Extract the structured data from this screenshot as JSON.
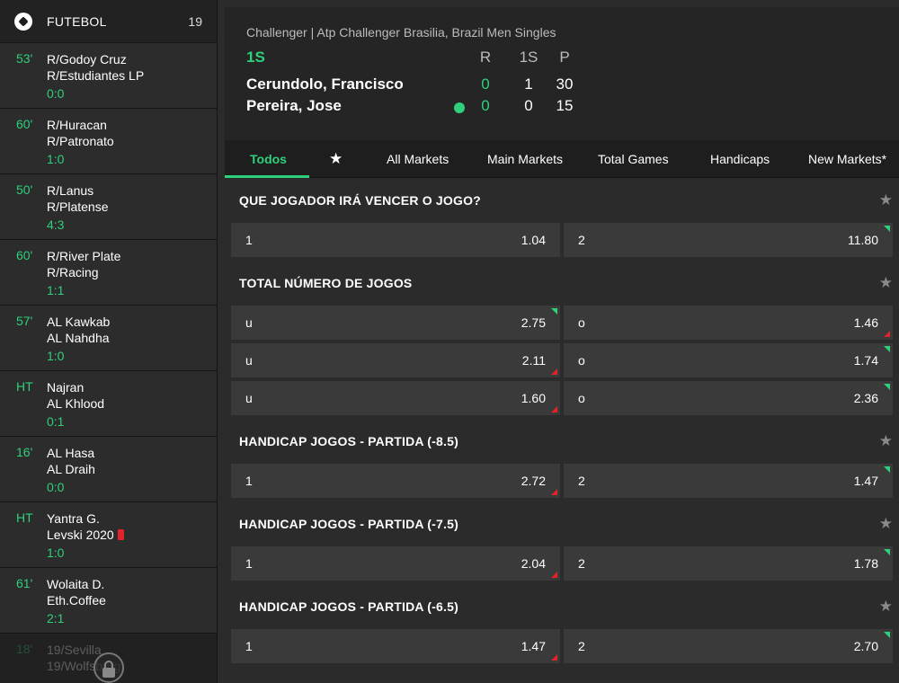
{
  "sidebar": {
    "title": "FUTEBOL",
    "count": "19",
    "matches": [
      {
        "minute": "53'",
        "home": "R/Godoy Cruz",
        "away": "R/Estudiantes LP",
        "score": "0:0"
      },
      {
        "minute": "60'",
        "home": "R/Huracan",
        "away": "R/Patronato",
        "score": "1:0"
      },
      {
        "minute": "50'",
        "home": "R/Lanus",
        "away": "R/Platense",
        "score": "4:3"
      },
      {
        "minute": "60'",
        "home": "R/River Plate",
        "away": "R/Racing",
        "score": "1:1"
      },
      {
        "minute": "57'",
        "home": "AL Kawkab",
        "away": "AL Nahdha",
        "score": "1:0"
      },
      {
        "minute": "HT",
        "home": "Najran",
        "away": "AL Khlood",
        "score": "0:1"
      },
      {
        "minute": "16'",
        "home": "AL Hasa",
        "away": "AL Draih",
        "score": "0:0"
      },
      {
        "minute": "HT",
        "home": "Yantra G.",
        "away": "Levski 2020",
        "score": "1:0"
      },
      {
        "minute": "61'",
        "home": "Wolaita D.",
        "away": "Eth.Coffee",
        "score": "2:1"
      },
      {
        "minute": "18'",
        "home": "19/Sevilla",
        "away": "19/Wolfsburg",
        "score": ""
      }
    ]
  },
  "scoreboard": {
    "event": "Challenger | Atp Challenger Brasilia, Brazil Men Singles",
    "period": "1S",
    "headers": [
      "R",
      "1S",
      "P"
    ],
    "players": [
      {
        "name": "Cerundolo, Francisco",
        "r": "0",
        "set": "1",
        "p": "30"
      },
      {
        "name": "Pereira, Jose",
        "r": "0",
        "set": "0",
        "p": "15"
      }
    ]
  },
  "tabs": [
    "Todos",
    "All Markets",
    "Main Markets",
    "Total Games",
    "Handicaps",
    "New Markets*"
  ],
  "markets": [
    {
      "title": "QUE JOGADOR IRÁ VENCER O JOGO?",
      "rows": [
        [
          {
            "label": "1",
            "odd": "1.04",
            "trend": ""
          },
          {
            "label": "2",
            "odd": "11.80",
            "trend": "up"
          }
        ]
      ]
    },
    {
      "title": "TOTAL NÚMERO DE JOGOS",
      "rows": [
        [
          {
            "label": "u",
            "odd": "2.75",
            "trend": "up"
          },
          {
            "label": "o",
            "odd": "1.46",
            "trend": "down"
          }
        ],
        [
          {
            "label": "u",
            "odd": "2.11",
            "trend": "down"
          },
          {
            "label": "o",
            "odd": "1.74",
            "trend": "up"
          }
        ],
        [
          {
            "label": "u",
            "odd": "1.60",
            "trend": "down"
          },
          {
            "label": "o",
            "odd": "2.36",
            "trend": "up"
          }
        ]
      ]
    },
    {
      "title": "HANDICAP JOGOS - PARTIDA (-8.5)",
      "rows": [
        [
          {
            "label": "1",
            "odd": "2.72",
            "trend": "down"
          },
          {
            "label": "2",
            "odd": "1.47",
            "trend": "up"
          }
        ]
      ]
    },
    {
      "title": "HANDICAP JOGOS - PARTIDA (-7.5)",
      "rows": [
        [
          {
            "label": "1",
            "odd": "2.04",
            "trend": "down"
          },
          {
            "label": "2",
            "odd": "1.78",
            "trend": "up"
          }
        ]
      ]
    },
    {
      "title": "HANDICAP JOGOS - PARTIDA (-6.5)",
      "rows": [
        [
          {
            "label": "1",
            "odd": "1.47",
            "trend": "down"
          },
          {
            "label": "2",
            "odd": "2.70",
            "trend": "up"
          }
        ]
      ]
    }
  ]
}
